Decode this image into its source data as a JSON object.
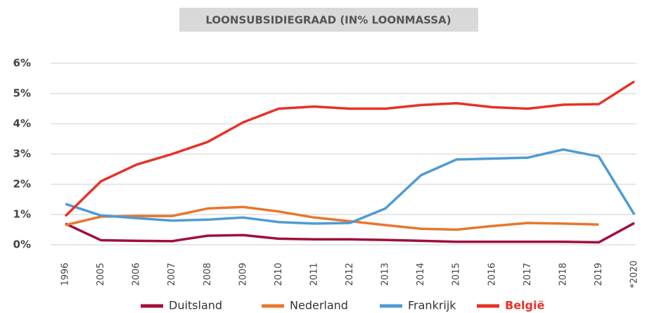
{
  "chart_data": {
    "type": "line",
    "title": "LOONSUBSIDIEGRAAD (IN% LOONMASSA)",
    "categories": [
      "1996",
      "2005",
      "2006",
      "2007",
      "2008",
      "2009",
      "2010",
      "2011",
      "2012",
      "2013",
      "2014",
      "2015",
      "2016",
      "2017",
      "2018",
      "2019",
      "*2020"
    ],
    "series": [
      {
        "name": "Duitsland",
        "color": "#a0103a",
        "values": [
          0.7,
          0.15,
          0.13,
          0.12,
          0.3,
          0.32,
          0.2,
          0.18,
          0.18,
          0.16,
          0.13,
          0.1,
          0.1,
          0.1,
          0.1,
          0.08,
          0.72
        ]
      },
      {
        "name": "Nederland",
        "color": "#e8772e",
        "values": [
          0.65,
          0.93,
          0.95,
          0.95,
          1.2,
          1.25,
          1.1,
          0.9,
          0.78,
          0.65,
          0.53,
          0.5,
          0.62,
          0.72,
          0.7,
          0.67,
          null
        ]
      },
      {
        "name": "Frankrijk",
        "color": "#4f9bd4",
        "values": [
          1.35,
          0.97,
          0.88,
          0.8,
          0.83,
          0.9,
          0.75,
          0.7,
          0.72,
          1.2,
          2.3,
          2.82,
          2.85,
          2.88,
          3.15,
          2.92,
          1.0
        ]
      },
      {
        "name": "België",
        "color": "#e63228",
        "values": [
          0.95,
          2.1,
          2.65,
          3.0,
          3.4,
          4.05,
          4.5,
          4.57,
          4.5,
          4.5,
          4.62,
          4.68,
          4.55,
          4.5,
          4.63,
          4.65,
          5.4
        ]
      }
    ],
    "ylim": [
      0,
      6
    ],
    "yticks": [
      {
        "value": 0,
        "label": "0%"
      },
      {
        "value": 1,
        "label": "1%"
      },
      {
        "value": 2,
        "label": "2%"
      },
      {
        "value": 3,
        "label": "3%"
      },
      {
        "value": 4,
        "label": "4%"
      },
      {
        "value": 5,
        "label": "5%"
      },
      {
        "value": 6,
        "label": "6%"
      }
    ],
    "grid": true
  }
}
